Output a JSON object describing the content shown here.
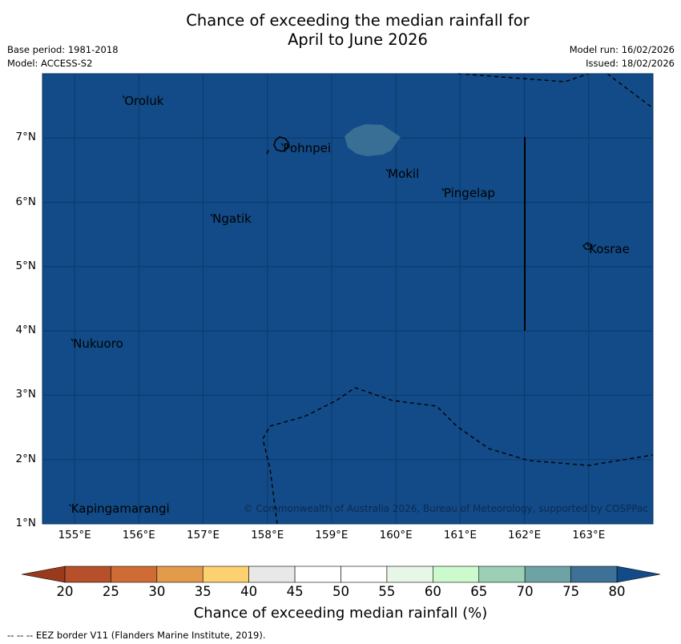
{
  "title_lines": [
    "Chance of exceeding the median rainfall for",
    "April to June 2026"
  ],
  "meta": {
    "base_period": "Base period: 1981-2018",
    "model": "Model: ACCESS-S2",
    "model_run": "Model run: 16/02/2026",
    "issued": "Issued: 18/02/2026"
  },
  "map": {
    "extent": {
      "lon_min": 154.5,
      "lon_max": 164.0,
      "lat_min": 1.0,
      "lat_max": 8.0
    },
    "lon_ticks": [
      155,
      156,
      157,
      158,
      159,
      160,
      161,
      162,
      163
    ],
    "lon_tick_labels": [
      "155°E",
      "156°E",
      "157°E",
      "158°E",
      "159°E",
      "160°E",
      "161°E",
      "162°E",
      "163°E"
    ],
    "lat_ticks": [
      1,
      2,
      3,
      4,
      5,
      6,
      7
    ],
    "lat_tick_labels": [
      "1°N",
      "2°N",
      "3°N",
      "4°N",
      "5°N",
      "6°N",
      "7°N"
    ],
    "background_class_color": "#124b87",
    "patch_color": "#3d7196",
    "places": [
      {
        "name": "Oroluk",
        "lon": 155.75,
        "lat": 7.62
      },
      {
        "name": "Pohnpei",
        "lon": 158.22,
        "lat": 6.88
      },
      {
        "name": "Mokil",
        "lon": 159.85,
        "lat": 6.48
      },
      {
        "name": "Pingelap",
        "lon": 160.72,
        "lat": 6.18
      },
      {
        "name": "Ngatik",
        "lon": 157.12,
        "lat": 5.78
      },
      {
        "name": "Kosrae",
        "lon": 162.98,
        "lat": 5.31
      },
      {
        "name": "Nukuoro",
        "lon": 154.95,
        "lat": 3.84
      },
      {
        "name": "Kapingamarangi",
        "lon": 154.92,
        "lat": 1.27
      }
    ],
    "copyright": "© Commonwealth of Australia 2026, Bureau of Meteorology, supported by COSPPac"
  },
  "colorbar": {
    "labels": [
      "20",
      "25",
      "30",
      "35",
      "40",
      "45",
      "50",
      "55",
      "60",
      "65",
      "70",
      "75",
      "80"
    ],
    "colors": [
      "#b5502a",
      "#cf6b35",
      "#e49a4b",
      "#fdd170",
      "#e8e8e8",
      "#ffffff",
      "#ffffff",
      "#e8f6e8",
      "#ccfacc",
      "#9ccfb6",
      "#6ea3a5",
      "#3d7196"
    ],
    "under_color": "#9a3a1c",
    "over_color": "#124b87",
    "title": "Chance of exceeding median rainfall (%)"
  },
  "footer": "--  --  -- EEZ border V11 (Flanders Marine Institute, 2019)."
}
